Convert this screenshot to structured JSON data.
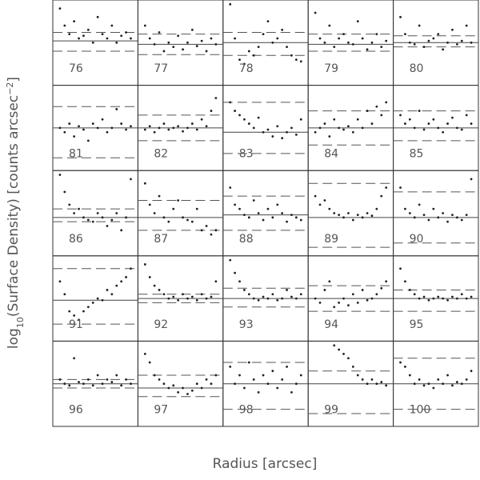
{
  "chart_data": {
    "type": "scatter-grid",
    "ylabel": {
      "text": "log",
      "sub": "10",
      "rest": "(Surface Density) [counts arcsec",
      "sup": "−2",
      "close": "]"
    },
    "xlabel": "Radius [arcsec]",
    "xlim": [
      0,
      1
    ],
    "ylim": [
      0,
      1
    ],
    "color": "#222222",
    "x": [
      0.05,
      0.11,
      0.17,
      0.23,
      0.29,
      0.35,
      0.41,
      0.47,
      0.53,
      0.59,
      0.65,
      0.71,
      0.77,
      0.83,
      0.89,
      0.95
    ],
    "panels": [
      {
        "label": "76",
        "solid": 0.52,
        "dashed": [
          0.62,
          0.4
        ],
        "values": [
          0.9,
          0.7,
          0.6,
          0.75,
          0.55,
          0.58,
          0.65,
          0.5,
          0.8,
          0.6,
          0.55,
          0.7,
          0.5,
          0.58,
          0.62,
          0.55
        ]
      },
      {
        "label": "77",
        "solid": 0.48,
        "dashed": [
          0.6,
          0.36
        ],
        "values": [
          0.7,
          0.55,
          0.48,
          0.62,
          0.4,
          0.5,
          0.45,
          0.58,
          0.42,
          0.5,
          0.65,
          0.46,
          0.52,
          0.4,
          0.55,
          0.48
        ]
      },
      {
        "label": "78",
        "solid": 0.5,
        "dashed": [
          0.62,
          0.35
        ],
        "values": [
          0.95,
          0.55,
          0.3,
          0.25,
          0.4,
          0.35,
          0.45,
          0.6,
          0.75,
          0.5,
          0.55,
          0.65,
          0.45,
          0.35,
          0.3,
          0.28
        ]
      },
      {
        "label": "79",
        "solid": 0.48,
        "dashed": [
          0.6,
          0.4
        ],
        "values": [
          0.85,
          0.55,
          0.5,
          0.7,
          0.45,
          0.55,
          0.6,
          0.5,
          0.48,
          0.75,
          0.55,
          0.42,
          0.5,
          0.6,
          0.45,
          0.52
        ]
      },
      {
        "label": "80",
        "solid": 0.5,
        "dashed": [
          0.58,
          0.45
        ],
        "values": [
          0.8,
          0.6,
          0.5,
          0.48,
          0.7,
          0.45,
          0.52,
          0.55,
          0.6,
          0.42,
          0.5,
          0.65,
          0.48,
          0.52,
          0.7,
          0.5
        ]
      },
      {
        "label": "81",
        "solid": 0.5,
        "dashed": [
          0.75,
          0.15
        ],
        "values": [
          0.5,
          0.45,
          0.55,
          0.4,
          0.52,
          0.48,
          0.35,
          0.55,
          0.5,
          0.6,
          0.45,
          0.5,
          0.72,
          0.55,
          0.48,
          0.52
        ]
      },
      {
        "label": "82",
        "solid": 0.5,
        "dashed": [
          0.65,
          0.35
        ],
        "values": [
          0.48,
          0.52,
          0.45,
          0.5,
          0.55,
          0.48,
          0.5,
          0.52,
          0.46,
          0.5,
          0.55,
          0.48,
          0.6,
          0.52,
          0.7,
          0.85
        ]
      },
      {
        "label": "83",
        "solid": 0.45,
        "dashed": [
          0.8,
          0.2
        ],
        "values": [
          0.8,
          0.7,
          0.65,
          0.6,
          0.55,
          0.5,
          0.62,
          0.45,
          0.48,
          0.4,
          0.52,
          0.38,
          0.45,
          0.5,
          0.42,
          0.6
        ]
      },
      {
        "label": "84",
        "solid": 0.5,
        "dashed": [
          0.7,
          0.3
        ],
        "values": [
          0.45,
          0.5,
          0.55,
          0.4,
          0.6,
          0.5,
          0.48,
          0.52,
          0.45,
          0.6,
          0.5,
          0.7,
          0.55,
          0.75,
          0.65,
          0.8
        ]
      },
      {
        "label": "85",
        "solid": 0.5,
        "dashed": [
          0.7,
          0.35
        ],
        "values": [
          0.65,
          0.55,
          0.6,
          0.5,
          0.7,
          0.48,
          0.55,
          0.6,
          0.5,
          0.45,
          0.55,
          0.62,
          0.5,
          0.48,
          0.65,
          0.55
        ]
      },
      {
        "label": "86",
        "solid": 0.45,
        "dashed": [
          0.55,
          0.4
        ],
        "values": [
          0.95,
          0.75,
          0.6,
          0.5,
          0.55,
          0.45,
          0.42,
          0.4,
          0.5,
          0.45,
          0.35,
          0.42,
          0.5,
          0.3,
          0.45,
          0.9
        ]
      },
      {
        "label": "87",
        "solid": 0.45,
        "dashed": [
          0.65,
          0.3
        ],
        "values": [
          0.85,
          0.6,
          0.5,
          0.7,
          0.45,
          0.4,
          0.55,
          0.65,
          0.45,
          0.42,
          0.4,
          0.55,
          0.3,
          0.35,
          0.25,
          0.3
        ]
      },
      {
        "label": "88",
        "solid": 0.48,
        "dashed": [
          0.7,
          0.3
        ],
        "values": [
          0.8,
          0.6,
          0.55,
          0.48,
          0.45,
          0.65,
          0.5,
          0.42,
          0.55,
          0.45,
          0.6,
          0.5,
          0.4,
          0.48,
          0.45,
          0.42
        ]
      },
      {
        "label": "89",
        "solid": 0.45,
        "dashed": [
          0.85,
          0.1
        ],
        "values": [
          0.7,
          0.6,
          0.65,
          0.55,
          0.5,
          0.48,
          0.45,
          0.5,
          0.42,
          0.48,
          0.45,
          0.5,
          0.47,
          0.55,
          0.7,
          0.8
        ]
      },
      {
        "label": "90",
        "solid": 0.45,
        "dashed": [
          0.75,
          0.15
        ],
        "values": [
          0.8,
          0.55,
          0.5,
          0.45,
          0.6,
          0.48,
          0.42,
          0.55,
          0.45,
          0.5,
          0.4,
          0.48,
          0.45,
          0.42,
          0.48,
          0.9
        ]
      },
      {
        "label": "91",
        "solid": 0.48,
        "dashed": [
          0.85,
          0.2
        ],
        "values": [
          0.7,
          0.55,
          0.35,
          0.3,
          0.25,
          0.35,
          0.4,
          0.45,
          0.5,
          0.48,
          0.6,
          0.55,
          0.65,
          0.7,
          0.75,
          0.85
        ]
      },
      {
        "label": "92",
        "solid": 0.5,
        "dashed": [
          0.55,
          0.45
        ],
        "values": [
          0.9,
          0.75,
          0.65,
          0.6,
          0.55,
          0.5,
          0.52,
          0.48,
          0.55,
          0.5,
          0.52,
          0.48,
          0.55,
          0.5,
          0.52,
          0.7
        ]
      },
      {
        "label": "93",
        "solid": 0.5,
        "dashed": [
          0.62,
          0.4
        ],
        "values": [
          0.95,
          0.8,
          0.7,
          0.6,
          0.55,
          0.5,
          0.48,
          0.52,
          0.5,
          0.55,
          0.48,
          0.5,
          0.6,
          0.52,
          0.5,
          0.55
        ]
      },
      {
        "label": "94",
        "solid": 0.5,
        "dashed": [
          0.65,
          0.35
        ],
        "values": [
          0.5,
          0.45,
          0.6,
          0.7,
          0.4,
          0.45,
          0.5,
          0.42,
          0.55,
          0.45,
          0.6,
          0.48,
          0.5,
          0.55,
          0.62,
          0.7
        ]
      },
      {
        "label": "95",
        "solid": 0.5,
        "dashed": [
          0.6,
          0.35
        ],
        "values": [
          0.85,
          0.7,
          0.6,
          0.55,
          0.5,
          0.52,
          0.48,
          0.5,
          0.52,
          0.5,
          0.48,
          0.52,
          0.5,
          0.55,
          0.5,
          0.52
        ]
      },
      {
        "label": "96",
        "solid": 0.5,
        "dashed": [
          0.55,
          0.45
        ],
        "values": [
          0.55,
          0.5,
          0.48,
          0.8,
          0.52,
          0.5,
          0.55,
          0.48,
          0.6,
          0.5,
          0.55,
          0.52,
          0.6,
          0.48,
          0.55,
          0.5
        ]
      },
      {
        "label": "97",
        "solid": 0.45,
        "dashed": [
          0.6,
          0.35
        ],
        "values": [
          0.85,
          0.75,
          0.6,
          0.55,
          0.5,
          0.45,
          0.48,
          0.4,
          0.45,
          0.38,
          0.42,
          0.5,
          0.45,
          0.55,
          0.5,
          0.6
        ]
      },
      {
        "label": "98",
        "solid": 0.5,
        "dashed": [
          0.75,
          0.2
        ],
        "values": [
          0.7,
          0.5,
          0.6,
          0.45,
          0.75,
          0.55,
          0.4,
          0.6,
          0.5,
          0.65,
          0.45,
          0.55,
          0.7,
          0.4,
          0.5,
          0.6
        ]
      },
      {
        "label": "99",
        "solid": 0.5,
        "dashed": [
          0.65,
          0.15
        ],
        "values": [
          null,
          null,
          null,
          null,
          0.95,
          0.9,
          0.85,
          0.8,
          0.7,
          0.6,
          0.55,
          0.5,
          0.55,
          0.5,
          0.52,
          0.48
        ]
      },
      {
        "label": "100",
        "solid": 0.5,
        "dashed": [
          0.8,
          0.2
        ],
        "values": [
          0.75,
          0.7,
          0.6,
          0.5,
          0.55,
          0.48,
          0.5,
          0.45,
          0.55,
          0.5,
          0.6,
          0.48,
          0.52,
          0.5,
          0.55,
          0.65
        ]
      }
    ]
  }
}
